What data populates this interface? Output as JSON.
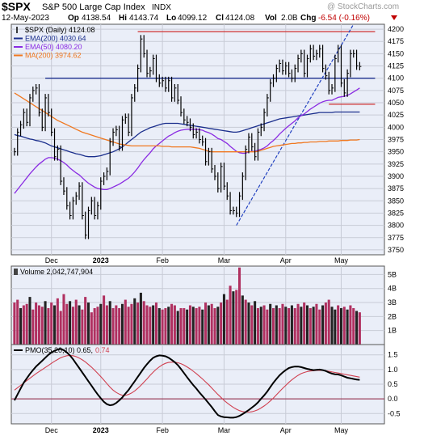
{
  "header": {
    "symbol": "$SPX",
    "name": "S&P 500 Large Cap Index",
    "exchange": "INDX",
    "watermark": "@ StockCharts.com",
    "quote": {
      "date": "12-May-2023",
      "open_label": "Op",
      "open": "4138.54",
      "high_label": "Hi",
      "high": "4143.74",
      "low_label": "Lo",
      "low": "4099.12",
      "close_label": "Cl",
      "close": "4124.08",
      "vol_label": "Vol",
      "vol": "2.0B",
      "chg_label": "Chg",
      "chg": "-6.54 (-0.16%)"
    }
  },
  "colors": {
    "panel_bg": "#eaeef8",
    "price": "#000000",
    "ema200": "#1a2e8c",
    "ema50": "#8a2be2",
    "ma200": "#f07820",
    "volume_up": "#222222",
    "volume_down": "#b03060",
    "pmo": "#000000",
    "pmo_signal": "#d04050",
    "trendline": "#2040c0",
    "resistance": "#d03030",
    "support_blue": "#1a2e8c",
    "zero_line": "#902040"
  },
  "legends": {
    "price": [
      {
        "label": "$SPX (Daily) 4124.08",
        "color": "#000000",
        "swatch": "bar"
      },
      {
        "label": "EMA(200) 4030.64",
        "color": "#1a2e8c",
        "swatch": "line"
      },
      {
        "label": "EMA(50) 4080.20",
        "color": "#8a2be2",
        "swatch": "line"
      },
      {
        "label": "MA(200) 3974.62",
        "color": "#f07820",
        "swatch": "line"
      }
    ],
    "volume": "Volume 2,042,747,904",
    "pmo": "PMO(35,20,10) 0.65,",
    "pmo_signal": "0.74"
  },
  "x_axis": {
    "labels": [
      {
        "label": "Dec",
        "bold": false
      },
      {
        "label": "2023",
        "bold": true
      },
      {
        "label": "Feb",
        "bold": false
      },
      {
        "label": "Mar",
        "bold": false
      },
      {
        "label": "Apr",
        "bold": false
      },
      {
        "label": "May",
        "bold": false
      }
    ]
  },
  "chart_data": [
    {
      "type": "line",
      "panel": "price",
      "title": "$SPX S&P 500 Large Cap Index INDX",
      "ylim": [
        3740,
        4210
      ],
      "ticks": [
        3750,
        3775,
        3800,
        3825,
        3850,
        3875,
        3900,
        3925,
        3950,
        3975,
        4000,
        4025,
        4050,
        4075,
        4100,
        4125,
        4150,
        4175,
        4200
      ],
      "x_tick_positions": [
        12,
        28,
        48,
        68,
        88,
        106
      ],
      "x_count": 120,
      "series": [
        {
          "name": "$SPX (Daily)",
          "kind": "close",
          "values": [
            3950,
            3990,
            4005,
            4030,
            4010,
            4060,
            4075,
            4080,
            4030,
            4000,
            4060,
            4030,
            3990,
            3940,
            3955,
            3890,
            3870,
            3840,
            3820,
            3850,
            3860,
            3880,
            3820,
            3780,
            3830,
            3850,
            3820,
            3840,
            3890,
            3900,
            3910,
            3970,
            3990,
            3995,
            3960,
            4015,
            4020,
            3990,
            4060,
            4080,
            4120,
            4180,
            4150,
            4110,
            4115,
            4140,
            4100,
            4090,
            4095,
            4080,
            4095,
            4060,
            4080,
            4055,
            4030,
            4015,
            4010,
            4000,
            3985,
            3990,
            3975,
            3970,
            3930,
            3950,
            3915,
            3900,
            3875,
            3920,
            3880,
            3860,
            3830,
            3830,
            3825,
            3860,
            3900,
            3955,
            3980,
            3960,
            3940,
            3990,
            4000,
            4030,
            4060,
            4090,
            4100,
            4120,
            4130,
            4115,
            4125,
            4110,
            4100,
            4120,
            4140,
            4150,
            4110,
            4140,
            4160,
            4145,
            4150,
            4160,
            4120,
            4105,
            4075,
            4080,
            4140,
            4160,
            4090,
            4070,
            4110,
            4150,
            4150,
            4125,
            4124
          ]
        },
        {
          "name": "EMA(200)",
          "values": [
            3985,
            3983,
            3982,
            3980,
            3978,
            3976,
            3975,
            3973,
            3972,
            3970,
            3968,
            3965,
            3962,
            3960,
            3958,
            3956,
            3954,
            3952,
            3950,
            3948,
            3946,
            3945,
            3943,
            3941,
            3940,
            3940,
            3940,
            3941,
            3942,
            3944,
            3946,
            3948,
            3950,
            3953,
            3956,
            3960,
            3965,
            3970,
            3975,
            3980,
            3985,
            3990,
            3993,
            3996,
            3999,
            4001,
            4003,
            4005,
            4007,
            4008,
            4008,
            4008,
            4008,
            4008,
            4007,
            4006,
            4005,
            4004,
            4003,
            4002,
            4001,
            4000,
            3999,
            3998,
            3997,
            3996,
            3995,
            3994,
            3993,
            3992,
            3991,
            3990,
            3990,
            3991,
            3993,
            3995,
            3997,
            3999,
            4001,
            4003,
            4005,
            4007,
            4009,
            4011,
            4013,
            4015,
            4017,
            4018,
            4019,
            4020,
            4021,
            4022,
            4023,
            4024,
            4025,
            4026,
            4027,
            4028,
            4029,
            4030,
            4030,
            4030,
            4030,
            4030,
            4031,
            4031,
            4031,
            4031,
            4031,
            4031,
            4031,
            4031,
            4031
          ]
        },
        {
          "name": "EMA(50)",
          "values": [
            3865,
            3873,
            3881,
            3889,
            3897,
            3905,
            3912,
            3919,
            3925,
            3930,
            3935,
            3938,
            3938,
            3937,
            3935,
            3932,
            3928,
            3923,
            3917,
            3912,
            3907,
            3903,
            3897,
            3891,
            3886,
            3882,
            3878,
            3875,
            3874,
            3873,
            3873,
            3875,
            3878,
            3881,
            3884,
            3888,
            3892,
            3896,
            3902,
            3909,
            3917,
            3926,
            3934,
            3941,
            3948,
            3956,
            3962,
            3967,
            3972,
            3977,
            3982,
            3985,
            3989,
            3992,
            3994,
            3995,
            3996,
            3996,
            3996,
            3996,
            3995,
            3994,
            3991,
            3989,
            3986,
            3982,
            3977,
            3975,
            3971,
            3967,
            3961,
            3956,
            3951,
            3948,
            3947,
            3947,
            3950,
            3951,
            3951,
            3953,
            3955,
            3958,
            3962,
            3968,
            3973,
            3979,
            3986,
            3992,
            3998,
            4003,
            4008,
            4013,
            4019,
            4024,
            4027,
            4032,
            4037,
            4041,
            4045,
            4049,
            4052,
            4054,
            4055,
            4055,
            4058,
            4061,
            4062,
            4063,
            4065,
            4068,
            4072,
            4076,
            4080
          ]
        },
        {
          "name": "MA(200)",
          "values": [
            4070,
            4066,
            4062,
            4058,
            4054,
            4050,
            4046,
            4042,
            4038,
            4034,
            4030,
            4026,
            4022,
            4018,
            4014,
            4011,
            4008,
            4005,
            4002,
            3999,
            3996,
            3993,
            3990,
            3988,
            3986,
            3984,
            3982,
            3980,
            3978,
            3976,
            3974,
            3972,
            3970,
            3968,
            3966,
            3965,
            3964,
            3963,
            3962,
            3962,
            3962,
            3962,
            3962,
            3962,
            3962,
            3962,
            3962,
            3962,
            3961,
            3961,
            3961,
            3960,
            3960,
            3960,
            3960,
            3960,
            3960,
            3960,
            3959,
            3958,
            3957,
            3955,
            3953,
            3951,
            3950,
            3950,
            3950,
            3950,
            3950,
            3950,
            3950,
            3950,
            3950,
            3950,
            3950,
            3950,
            3950,
            3950,
            3950,
            3951,
            3953,
            3955,
            3957,
            3959,
            3961,
            3962,
            3963,
            3964,
            3965,
            3966,
            3967,
            3967,
            3968,
            3968,
            3969,
            3969,
            3970,
            3970,
            3970,
            3971,
            3971,
            3971,
            3972,
            3972,
            3972,
            3972,
            3973,
            3973,
            3973,
            3974,
            3974,
            3974,
            3975
          ]
        }
      ],
      "annotations": [
        {
          "type": "hline",
          "y": 4195,
          "x_start": 40,
          "x_end": 117,
          "color": "#d03030"
        },
        {
          "type": "hline",
          "y": 4100,
          "x_start": 10,
          "x_end": 117,
          "color": "#1a2e8c"
        },
        {
          "type": "hline",
          "y": 4047,
          "x_start": 102,
          "x_end": 117,
          "color": "#d03030"
        },
        {
          "type": "trendline",
          "x1": 72,
          "y1": 3800,
          "x2": 110,
          "y2": 4210,
          "color": "#2040c0"
        }
      ]
    },
    {
      "type": "bar",
      "panel": "volume",
      "title": "Volume 2,042,747,904",
      "ylim": [
        0,
        5.6
      ],
      "ticks": [
        1,
        2,
        3,
        4,
        5
      ],
      "tick_labels": [
        "1B",
        "2B",
        "3B",
        "4B",
        "5B"
      ],
      "x_count": 120,
      "values": [
        3.0,
        3.2,
        2.6,
        2.8,
        2.9,
        3.4,
        2.5,
        3.0,
        2.8,
        2.7,
        3.1,
        2.6,
        3.0,
        2.8,
        3.3,
        2.4,
        3.6,
        2.9,
        3.1,
        2.7,
        3.2,
        2.8,
        2.5,
        3.4,
        3.0,
        2.3,
        2.6,
        2.7,
        2.9,
        3.5,
        2.8,
        3.1,
        2.6,
        2.8,
        2.6,
        2.9,
        3.2,
        2.7,
        2.9,
        3.3,
        3.0,
        3.7,
        3.1,
        2.8,
        2.7,
        2.8,
        3.0,
        2.6,
        2.5,
        2.6,
        2.7,
        2.9,
        2.8,
        2.4,
        2.6,
        2.6,
        2.5,
        2.8,
        2.7,
        2.6,
        2.7,
        2.5,
        3.0,
        2.8,
        2.9,
        2.6,
        2.7,
        3.0,
        3.6,
        3.2,
        4.2,
        3.8,
        3.9,
        5.5,
        3.5,
        3.2,
        3.0,
        2.8,
        3.1,
        2.6,
        2.7,
        2.8,
        2.5,
        2.9,
        2.6,
        2.8,
        2.6,
        2.9,
        2.7,
        2.6,
        2.8,
        2.6,
        2.9,
        2.7,
        3.0,
        2.8,
        2.6,
        2.7,
        2.9,
        2.5,
        2.8,
        3.0,
        3.2,
        2.7,
        2.5,
        2.8,
        2.6,
        2.7,
        2.5,
        2.8,
        2.6,
        2.4,
        2.3
      ],
      "colors": [
        "down",
        "down",
        "up",
        "down",
        "down",
        "up",
        "down",
        "down",
        "down",
        "down",
        "up",
        "down",
        "down",
        "up",
        "down",
        "down",
        "down",
        "down",
        "up",
        "down",
        "down",
        "up",
        "down",
        "down",
        "up",
        "down",
        "down",
        "down",
        "up",
        "down",
        "down",
        "up",
        "down",
        "down",
        "down",
        "up",
        "down",
        "down",
        "down",
        "up",
        "down",
        "up",
        "down",
        "down",
        "down",
        "up",
        "down",
        "up",
        "down",
        "down",
        "up",
        "down",
        "down",
        "up",
        "down",
        "down",
        "up",
        "down",
        "up",
        "down",
        "down",
        "up",
        "down",
        "up",
        "down",
        "down",
        "up",
        "down",
        "up",
        "down",
        "down",
        "up",
        "down",
        "down",
        "up",
        "down",
        "up",
        "down",
        "up",
        "down",
        "up",
        "down",
        "down",
        "up",
        "down",
        "up",
        "down",
        "down",
        "up",
        "down",
        "up",
        "down",
        "down",
        "up",
        "down",
        "up",
        "down",
        "up",
        "down",
        "down",
        "up",
        "down",
        "down",
        "up",
        "up",
        "down",
        "up",
        "down",
        "up",
        "down",
        "down",
        "up",
        "down"
      ]
    },
    {
      "type": "line",
      "panel": "pmo",
      "title": "PMO(35,20,10)",
      "ylim": [
        -0.85,
        1.85
      ],
      "ticks": [
        -0.5,
        0.0,
        0.5,
        1.0,
        1.5
      ],
      "tick_labels": [
        "-0.5",
        "0.0",
        "0.5",
        "1.0",
        "1.5"
      ],
      "x_count": 120,
      "series": [
        {
          "name": "PMO",
          "values": [
            -0.05,
            0.15,
            0.35,
            0.55,
            0.7,
            0.85,
            0.98,
            1.1,
            1.2,
            1.3,
            1.4,
            1.5,
            1.58,
            1.64,
            1.68,
            1.7,
            1.66,
            1.58,
            1.48,
            1.35,
            1.2,
            1.05,
            0.9,
            0.75,
            0.6,
            0.45,
            0.3,
            0.15,
            0.02,
            -0.1,
            -0.18,
            -0.22,
            -0.2,
            -0.14,
            -0.05,
            0.05,
            0.18,
            0.3,
            0.45,
            0.6,
            0.75,
            0.9,
            1.05,
            1.18,
            1.3,
            1.4,
            1.45,
            1.48,
            1.47,
            1.45,
            1.4,
            1.33,
            1.25,
            1.15,
            1.02,
            0.88,
            0.74,
            0.6,
            0.47,
            0.35,
            0.22,
            0.1,
            -0.02,
            -0.15,
            -0.28,
            -0.42,
            -0.55,
            -0.6,
            -0.62,
            -0.63,
            -0.64,
            -0.64,
            -0.62,
            -0.58,
            -0.52,
            -0.45,
            -0.38,
            -0.3,
            -0.22,
            -0.12,
            0.0,
            0.12,
            0.25,
            0.4,
            0.55,
            0.68,
            0.8,
            0.9,
            0.98,
            1.05,
            1.08,
            1.1,
            1.1,
            1.08,
            1.05,
            1.02,
            1.0,
            0.98,
            0.99,
            1.0,
            0.98,
            0.95,
            0.9,
            0.86,
            0.84,
            0.83,
            0.8,
            0.76,
            0.72,
            0.7,
            0.68,
            0.66,
            0.65
          ]
        },
        {
          "name": "Signal",
          "values": [
            0.3,
            0.38,
            0.46,
            0.54,
            0.62,
            0.7,
            0.78,
            0.86,
            0.93,
            1.0,
            1.07,
            1.14,
            1.21,
            1.28,
            1.34,
            1.4,
            1.44,
            1.47,
            1.48,
            1.47,
            1.44,
            1.39,
            1.33,
            1.26,
            1.17,
            1.08,
            0.98,
            0.87,
            0.76,
            0.64,
            0.52,
            0.4,
            0.3,
            0.22,
            0.16,
            0.12,
            0.12,
            0.15,
            0.2,
            0.27,
            0.36,
            0.46,
            0.57,
            0.68,
            0.8,
            0.91,
            1.01,
            1.09,
            1.16,
            1.21,
            1.24,
            1.25,
            1.25,
            1.23,
            1.2,
            1.15,
            1.09,
            1.02,
            0.94,
            0.86,
            0.77,
            0.68,
            0.58,
            0.48,
            0.37,
            0.26,
            0.15,
            0.05,
            -0.05,
            -0.14,
            -0.22,
            -0.29,
            -0.35,
            -0.4,
            -0.43,
            -0.45,
            -0.45,
            -0.44,
            -0.41,
            -0.37,
            -0.31,
            -0.24,
            -0.16,
            -0.07,
            0.03,
            0.14,
            0.25,
            0.36,
            0.46,
            0.56,
            0.65,
            0.73,
            0.8,
            0.86,
            0.9,
            0.93,
            0.95,
            0.96,
            0.97,
            0.97,
            0.97,
            0.96,
            0.94,
            0.92,
            0.9,
            0.88,
            0.86,
            0.84,
            0.82,
            0.8,
            0.78,
            0.76,
            0.74
          ]
        }
      ],
      "zero_line": 0.0
    }
  ]
}
